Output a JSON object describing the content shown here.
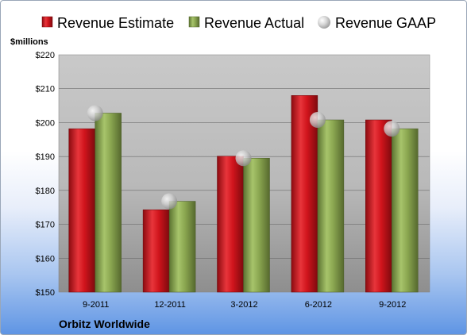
{
  "chart_data": {
    "type": "bar",
    "unit_label": "$millions",
    "company": "Orbitz Worldwide",
    "categories": [
      "9-2011",
      "12-2011",
      "3-2012",
      "6-2012",
      "9-2012"
    ],
    "series": [
      {
        "name": "Revenue Estimate",
        "kind": "bar",
        "color": "#d0141c",
        "values": [
          198.2,
          174.3,
          190.1,
          208.0,
          200.8
        ]
      },
      {
        "name": "Revenue Actual",
        "kind": "bar",
        "color": "#8aa650",
        "values": [
          202.8,
          176.8,
          189.5,
          200.8,
          198.2
        ]
      },
      {
        "name": "Revenue GAAP",
        "kind": "point",
        "color": "#c0c0c0",
        "values": [
          202.8,
          176.8,
          189.5,
          200.8,
          198.2
        ]
      }
    ],
    "ylim": [
      150,
      220
    ],
    "yticks": [
      150,
      160,
      170,
      180,
      190,
      200,
      210,
      220
    ],
    "ytick_labels": [
      "$150",
      "$160",
      "$170",
      "$180",
      "$190",
      "$200",
      "$210",
      "$220"
    ],
    "grid": true,
    "legend": "top"
  }
}
